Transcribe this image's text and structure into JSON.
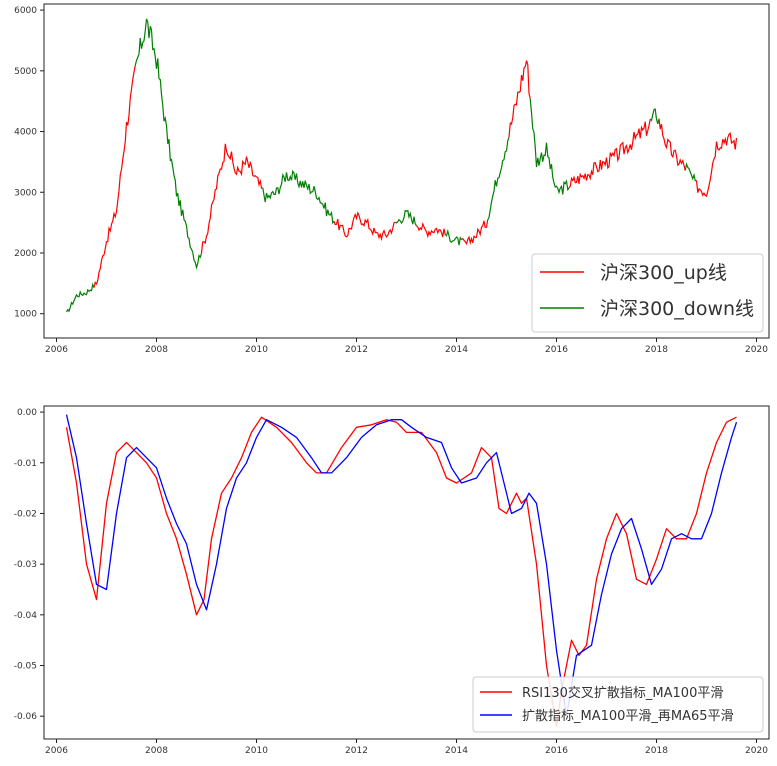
{
  "chart_data": [
    {
      "type": "line",
      "title": "",
      "xlabel": "",
      "ylabel": "",
      "xlim": [
        2005.75,
        2020.25
      ],
      "ylim": [
        600,
        6100
      ],
      "xticks": [
        "2006",
        "2008",
        "2010",
        "2012",
        "2014",
        "2016",
        "2018",
        "2020"
      ],
      "yticks": [
        "1000",
        "2000",
        "3000",
        "4000",
        "5000",
        "6000"
      ],
      "legend_position": "lower-right",
      "series": [
        {
          "name": "沪深300_up线",
          "color": "#ff0000"
        },
        {
          "name": "沪深300_down线",
          "color": "#008000"
        }
      ],
      "x": [
        2006.2,
        2006.4,
        2006.6,
        2006.8,
        2007.0,
        2007.2,
        2007.4,
        2007.6,
        2007.8,
        2008.0,
        2008.2,
        2008.4,
        2008.6,
        2008.8,
        2009.0,
        2009.2,
        2009.4,
        2009.6,
        2009.8,
        2010.0,
        2010.2,
        2010.4,
        2010.6,
        2010.8,
        2011.0,
        2011.2,
        2011.4,
        2011.6,
        2011.8,
        2012.0,
        2012.2,
        2012.4,
        2012.6,
        2012.8,
        2013.0,
        2013.2,
        2013.4,
        2013.6,
        2013.8,
        2014.0,
        2014.2,
        2014.4,
        2014.6,
        2014.8,
        2015.0,
        2015.2,
        2015.4,
        2015.6,
        2015.8,
        2016.0,
        2016.2,
        2016.4,
        2016.6,
        2016.8,
        2017.0,
        2017.2,
        2017.4,
        2017.6,
        2017.8,
        2018.0,
        2018.2,
        2018.4,
        2018.6,
        2018.8,
        2019.0,
        2019.2,
        2019.4,
        2019.6
      ],
      "values": [
        1000,
        1300,
        1350,
        1500,
        2200,
        2700,
        4100,
        5100,
        5800,
        5200,
        4000,
        3000,
        2400,
        1800,
        2300,
        3100,
        3800,
        3300,
        3500,
        3200,
        2900,
        3000,
        3300,
        3200,
        3100,
        3000,
        2700,
        2500,
        2300,
        2600,
        2500,
        2300,
        2300,
        2500,
        2650,
        2500,
        2350,
        2400,
        2300,
        2200,
        2150,
        2300,
        2500,
        3200,
        3800,
        4500,
        5200,
        3500,
        3700,
        3000,
        3100,
        3200,
        3300,
        3400,
        3500,
        3600,
        3750,
        3900,
        4050,
        4300,
        3800,
        3550,
        3400,
        3100,
        3000,
        3800,
        3900,
        3800
      ],
      "up_segments": [
        [
          2006.75,
          2007.55
        ],
        [
          2008.9,
          2010.1
        ],
        [
          2011.55,
          2012.75
        ],
        [
          2013.2,
          2013.75
        ],
        [
          2014.1,
          2014.6
        ],
        [
          2015.05,
          2015.45
        ],
        [
          2016.25,
          2017.85
        ],
        [
          2018.05,
          2018.55
        ],
        [
          2018.8,
          2019.65
        ]
      ]
    },
    {
      "type": "line",
      "title": "",
      "xlabel": "",
      "ylabel": "",
      "xlim": [
        2005.75,
        2020.25
      ],
      "ylim": [
        -0.0645,
        0.0012
      ],
      "xticks": [
        "2006",
        "2008",
        "2010",
        "2012",
        "2014",
        "2016",
        "2018",
        "2020"
      ],
      "yticks": [
        "0.00",
        "-0.01",
        "-0.02",
        "-0.03",
        "-0.04",
        "-0.05",
        "-0.06"
      ],
      "legend_position": "lower-right",
      "series": [
        {
          "name": "RSI130交叉扩散指标_MA100平滑",
          "color": "#ff0000",
          "x": [
            2006.2,
            2006.4,
            2006.6,
            2006.8,
            2007.0,
            2007.2,
            2007.4,
            2007.6,
            2007.8,
            2008.0,
            2008.2,
            2008.4,
            2008.6,
            2008.8,
            2008.95,
            2009.1,
            2009.3,
            2009.5,
            2009.7,
            2009.9,
            2010.1,
            2010.4,
            2010.7,
            2011.0,
            2011.2,
            2011.4,
            2011.7,
            2012.0,
            2012.3,
            2012.6,
            2012.8,
            2013.0,
            2013.3,
            2013.6,
            2013.8,
            2014.0,
            2014.3,
            2014.5,
            2014.7,
            2014.85,
            2015.0,
            2015.2,
            2015.3,
            2015.4,
            2015.6,
            2015.8,
            2016.0,
            2016.1,
            2016.3,
            2016.45,
            2016.6,
            2016.8,
            2017.0,
            2017.2,
            2017.4,
            2017.6,
            2017.8,
            2018.0,
            2018.2,
            2018.4,
            2018.6,
            2018.8,
            2019.0,
            2019.2,
            2019.4,
            2019.6
          ],
          "values": [
            -0.003,
            -0.014,
            -0.03,
            -0.037,
            -0.018,
            -0.008,
            -0.006,
            -0.008,
            -0.01,
            -0.013,
            -0.02,
            -0.025,
            -0.032,
            -0.04,
            -0.037,
            -0.025,
            -0.016,
            -0.013,
            -0.009,
            -0.004,
            -0.001,
            -0.003,
            -0.006,
            -0.01,
            -0.012,
            -0.012,
            -0.007,
            -0.003,
            -0.0025,
            -0.0015,
            -0.002,
            -0.004,
            -0.004,
            -0.008,
            -0.013,
            -0.014,
            -0.012,
            -0.007,
            -0.009,
            -0.019,
            -0.02,
            -0.016,
            -0.018,
            -0.017,
            -0.03,
            -0.05,
            -0.062,
            -0.055,
            -0.045,
            -0.048,
            -0.046,
            -0.033,
            -0.025,
            -0.02,
            -0.024,
            -0.033,
            -0.034,
            -0.029,
            -0.023,
            -0.025,
            -0.025,
            -0.02,
            -0.012,
            -0.006,
            -0.002,
            -0.001
          ]
        },
        {
          "name": "扩散指标_MA100平滑_再MA65平滑",
          "color": "#0000ff",
          "x": [
            2006.2,
            2006.4,
            2006.6,
            2006.8,
            2007.0,
            2007.2,
            2007.4,
            2007.6,
            2007.8,
            2008.0,
            2008.2,
            2008.4,
            2008.6,
            2008.8,
            2009.0,
            2009.2,
            2009.4,
            2009.6,
            2009.8,
            2010.0,
            2010.2,
            2010.5,
            2010.8,
            2011.1,
            2011.3,
            2011.5,
            2011.8,
            2012.1,
            2012.4,
            2012.7,
            2012.9,
            2013.1,
            2013.4,
            2013.7,
            2013.9,
            2014.1,
            2014.4,
            2014.6,
            2014.8,
            2014.95,
            2015.1,
            2015.3,
            2015.45,
            2015.6,
            2015.8,
            2016.0,
            2016.2,
            2016.4,
            2016.55,
            2016.7,
            2016.9,
            2017.1,
            2017.3,
            2017.5,
            2017.7,
            2017.9,
            2018.1,
            2018.3,
            2018.5,
            2018.7,
            2018.9,
            2019.1,
            2019.3,
            2019.5,
            2019.6
          ],
          "values": [
            -0.0005,
            -0.009,
            -0.022,
            -0.034,
            -0.035,
            -0.02,
            -0.009,
            -0.007,
            -0.009,
            -0.011,
            -0.017,
            -0.022,
            -0.026,
            -0.034,
            -0.039,
            -0.03,
            -0.019,
            -0.013,
            -0.01,
            -0.005,
            -0.0015,
            -0.003,
            -0.005,
            -0.009,
            -0.012,
            -0.012,
            -0.009,
            -0.005,
            -0.0025,
            -0.0015,
            -0.0015,
            -0.003,
            -0.005,
            -0.006,
            -0.011,
            -0.014,
            -0.013,
            -0.01,
            -0.008,
            -0.014,
            -0.02,
            -0.019,
            -0.016,
            -0.018,
            -0.03,
            -0.047,
            -0.06,
            -0.048,
            -0.047,
            -0.046,
            -0.036,
            -0.028,
            -0.023,
            -0.021,
            -0.027,
            -0.034,
            -0.031,
            -0.025,
            -0.024,
            -0.025,
            -0.025,
            -0.02,
            -0.012,
            -0.005,
            -0.002
          ]
        }
      ]
    }
  ]
}
